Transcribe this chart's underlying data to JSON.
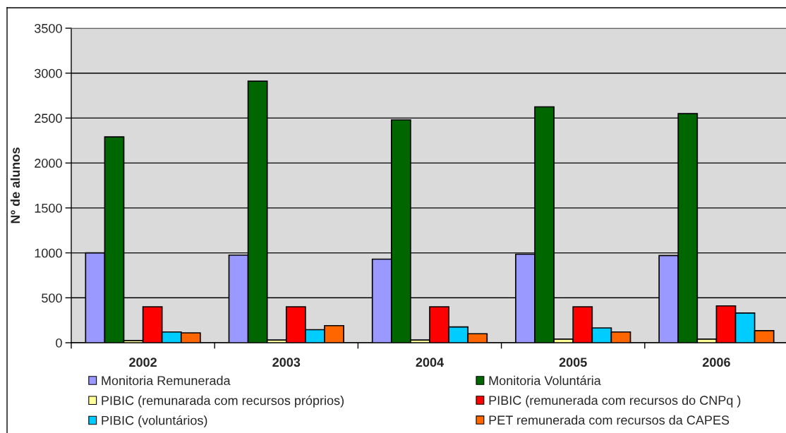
{
  "chart_data": {
    "type": "bar",
    "ylabel": "Nº de alunos",
    "categories": [
      "2002",
      "2003",
      "2004",
      "2005",
      "2006"
    ],
    "series": [
      {
        "name": "Monitoria Remunerada",
        "color": "#9999ff",
        "values": [
          1000,
          975,
          930,
          985,
          970
        ]
      },
      {
        "name": "Monitoria Voluntária",
        "color": "#006600",
        "values": [
          2290,
          2910,
          2480,
          2625,
          2550
        ]
      },
      {
        "name": "PIBIC (remunarada com recursos próprios)",
        "color": "#ffff99",
        "values": [
          25,
          30,
          30,
          40,
          40
        ]
      },
      {
        "name": "PIBIC (remunerada com recursos do CNPq )",
        "color": "#ff0000",
        "values": [
          400,
          400,
          400,
          400,
          410
        ]
      },
      {
        "name": "PIBIC (voluntários)",
        "color": "#00ccff",
        "values": [
          120,
          145,
          175,
          165,
          330
        ]
      },
      {
        "name": "PET remunerada com recursos da CAPES",
        "color": "#ff6600",
        "values": [
          110,
          190,
          100,
          120,
          135
        ]
      }
    ],
    "ylim": [
      0,
      3500
    ],
    "yticks": [
      0,
      500,
      1000,
      1500,
      2000,
      2500,
      3000,
      3500
    ],
    "grid": "y",
    "legend": "bottom"
  }
}
